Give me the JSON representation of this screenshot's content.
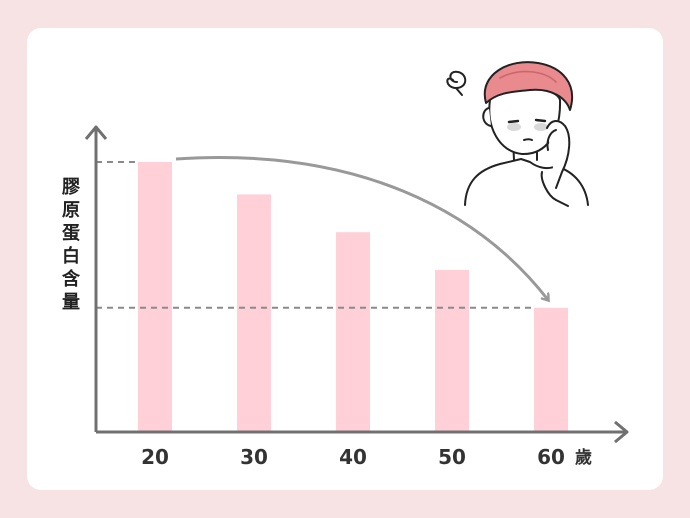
{
  "chart_data": {
    "type": "bar",
    "title": "",
    "categories": [
      "20",
      "30",
      "40",
      "50",
      "60"
    ],
    "values": [
      100,
      88,
      74,
      60,
      46
    ],
    "x_unit": "歲",
    "ylabel": "膠原蛋白含量",
    "reference_lines": [
      {
        "from_category": "20",
        "value": 100
      },
      {
        "from_category": "60",
        "value": 46
      }
    ],
    "trend_arrow": {
      "from": "20",
      "to": "60"
    },
    "grid": false,
    "legend": "none",
    "colors": {
      "bar": "#ffd0d8",
      "axis": "#707070",
      "dashed": "#8a8a8a",
      "arrow": "#999999",
      "background": "#f8e3e4",
      "card": "#ffffff"
    }
  },
  "illustration": {
    "icon": "worried-woman-with-towel-icon",
    "towel_color": "#e98a8e"
  }
}
